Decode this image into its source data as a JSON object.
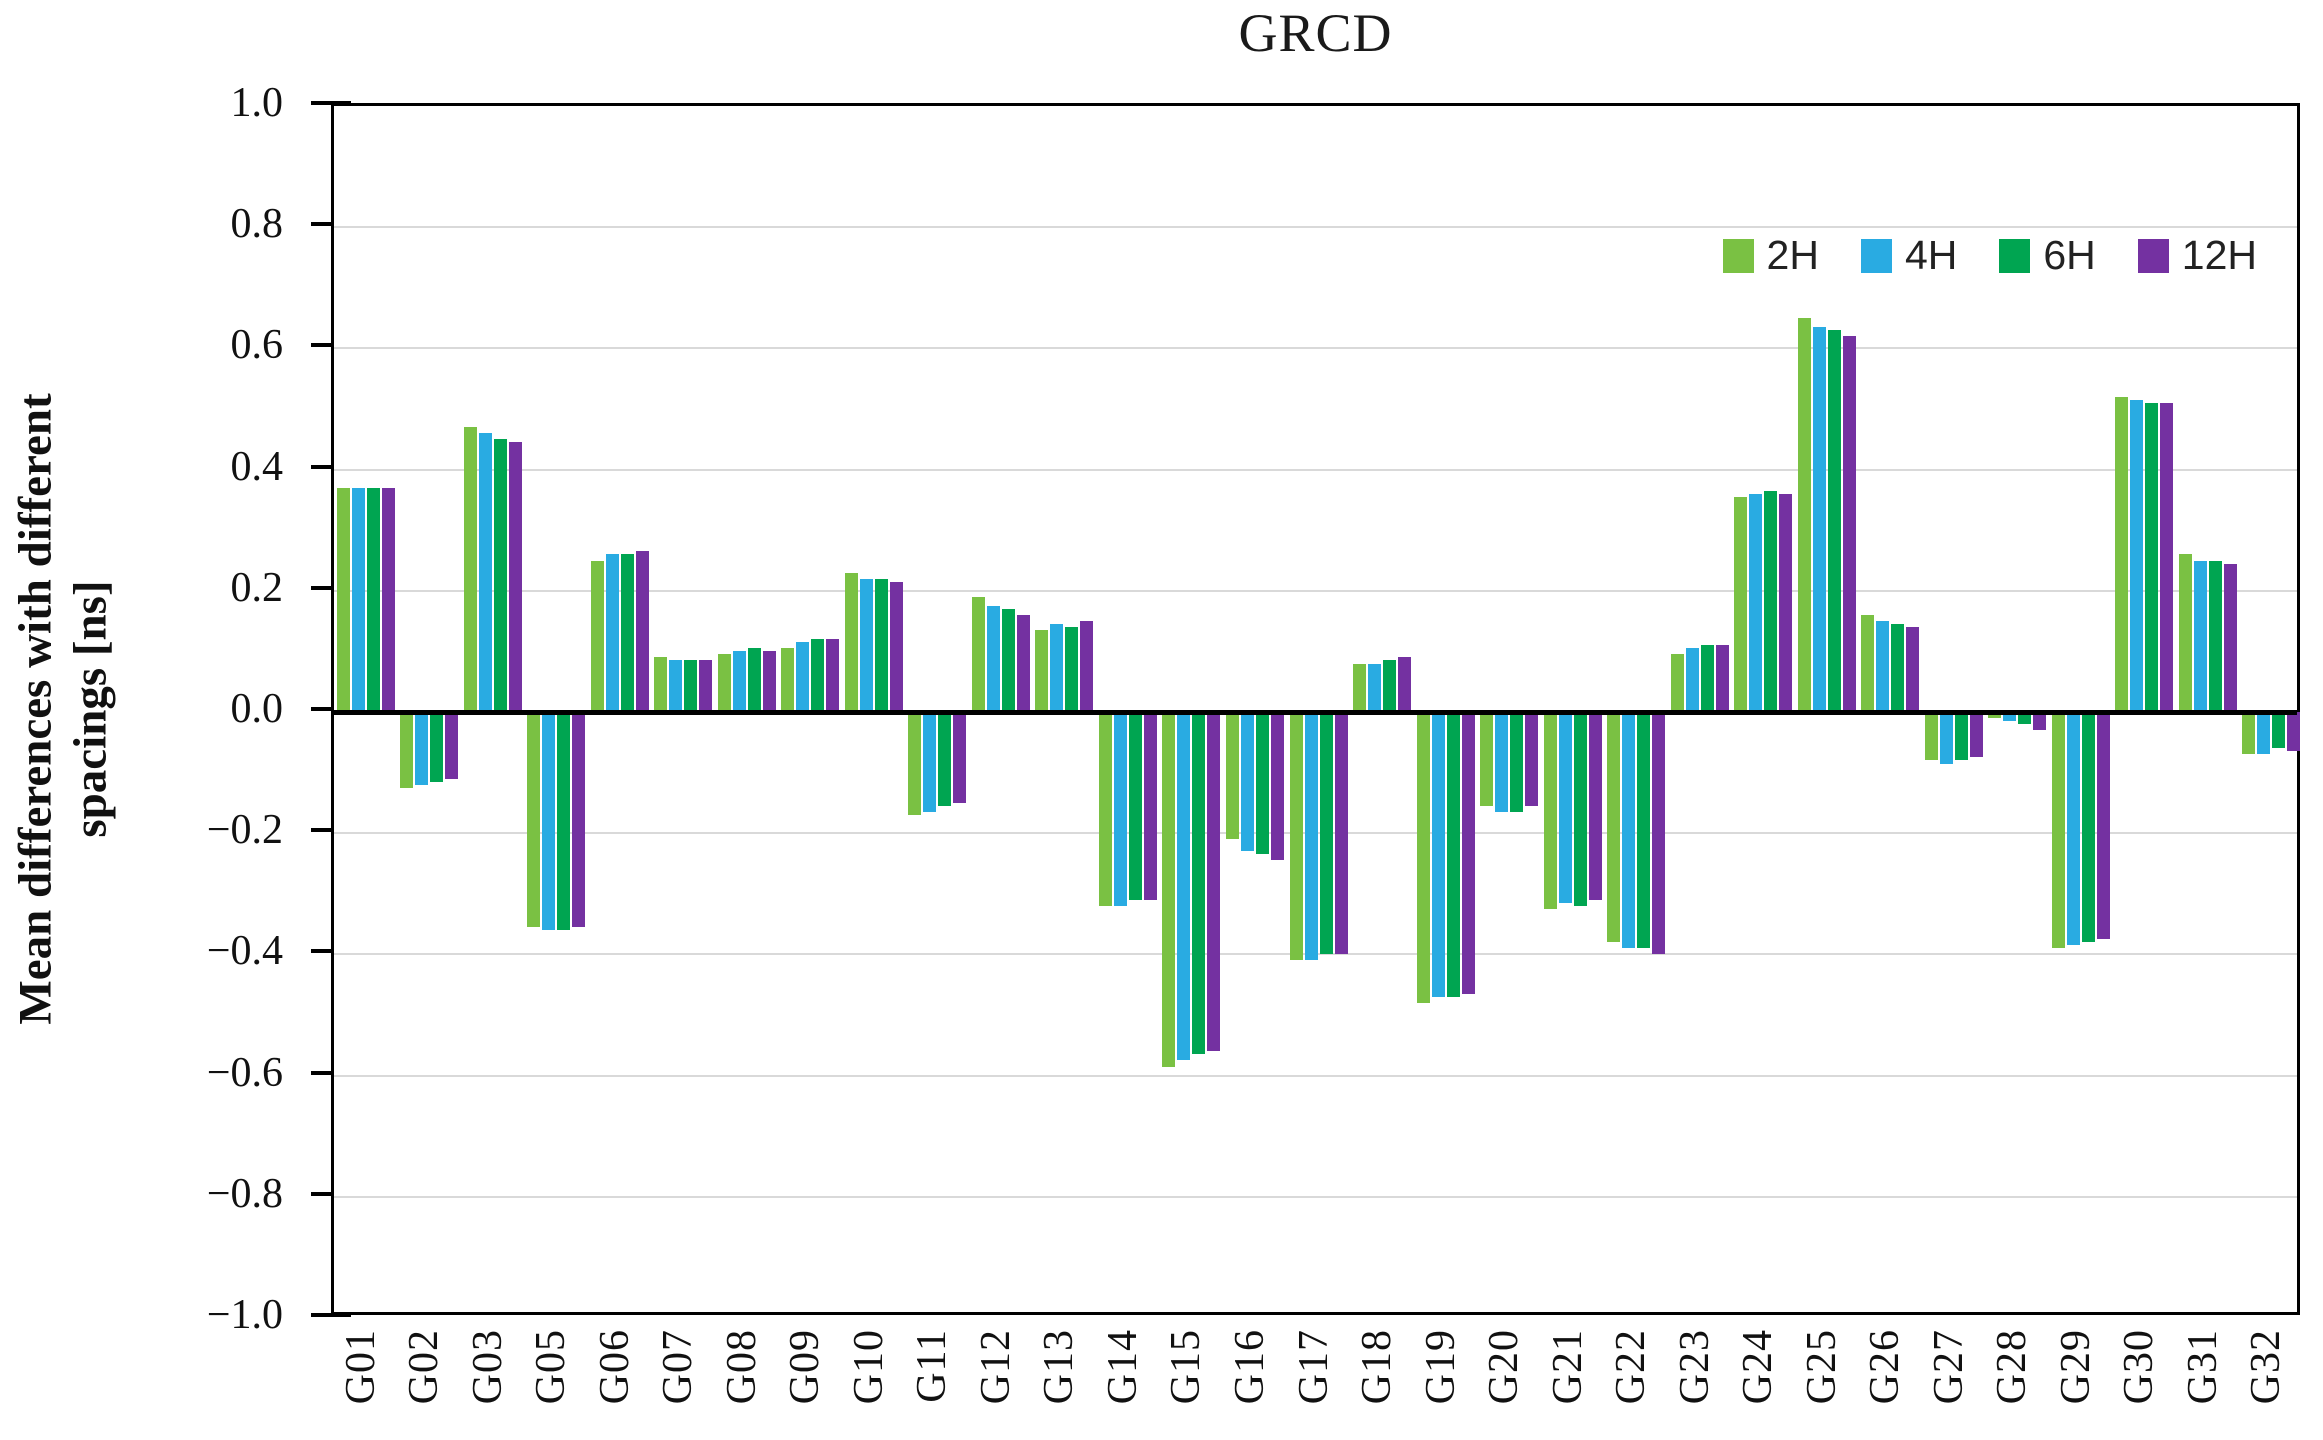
{
  "chart_data": {
    "type": "bar",
    "title": "GRCD",
    "ylabel": "Mean differences with different spacings [ns]",
    "ylabel_line1": "Mean differences with different",
    "ylabel_line2": "spacings [ns]",
    "xlabel": "",
    "ylim": [
      -1.0,
      1.0
    ],
    "ytick_step": 0.2,
    "ytick_labels": [
      "1.0",
      "0.8",
      "0.6",
      "0.4",
      "0.2",
      "0.0",
      "−0.2",
      "−0.4",
      "−0.6",
      "−0.8",
      "−1.0"
    ],
    "grid": true,
    "legend_position": "top-right",
    "categories": [
      "G01",
      "G02",
      "G03",
      "G05",
      "G06",
      "G07",
      "G08",
      "G09",
      "G10",
      "G11",
      "G12",
      "G13",
      "G14",
      "G15",
      "G16",
      "G17",
      "G18",
      "G19",
      "G20",
      "G21",
      "G22",
      "G23",
      "G24",
      "G25",
      "G26",
      "G27",
      "G28",
      "G29",
      "G30",
      "G31",
      "G32"
    ],
    "series": [
      {
        "name": "2H",
        "color": "#7AC143",
        "values": [
          0.37,
          -0.125,
          0.47,
          -0.355,
          0.25,
          0.09,
          0.095,
          0.105,
          0.23,
          -0.17,
          0.19,
          0.135,
          -0.32,
          -0.585,
          -0.21,
          -0.41,
          0.08,
          -0.48,
          -0.155,
          -0.325,
          -0.38,
          0.095,
          0.355,
          0.65,
          0.16,
          -0.08,
          -0.01,
          -0.39,
          0.52,
          0.26,
          -0.07
        ]
      },
      {
        "name": "4H",
        "color": "#29ABE2",
        "values": [
          0.37,
          -0.12,
          0.46,
          -0.36,
          0.26,
          0.085,
          0.1,
          0.115,
          0.22,
          -0.165,
          0.175,
          0.145,
          -0.32,
          -0.575,
          -0.23,
          -0.41,
          0.08,
          -0.47,
          -0.165,
          -0.315,
          -0.39,
          0.105,
          0.36,
          0.635,
          0.15,
          -0.085,
          -0.015,
          -0.385,
          0.515,
          0.25,
          -0.07
        ]
      },
      {
        "name": "6H",
        "color": "#00A551",
        "values": [
          0.37,
          -0.115,
          0.45,
          -0.36,
          0.26,
          0.085,
          0.105,
          0.12,
          0.22,
          -0.155,
          0.17,
          0.14,
          -0.31,
          -0.565,
          -0.235,
          -0.4,
          0.085,
          -0.47,
          -0.165,
          -0.32,
          -0.39,
          0.11,
          0.365,
          0.63,
          0.145,
          -0.08,
          -0.02,
          -0.38,
          0.51,
          0.25,
          -0.06
        ]
      },
      {
        "name": "12H",
        "color": "#7431A1",
        "values": [
          0.37,
          -0.11,
          0.445,
          -0.355,
          0.265,
          0.085,
          0.1,
          0.12,
          0.215,
          -0.15,
          0.16,
          0.15,
          -0.31,
          -0.56,
          -0.245,
          -0.4,
          0.09,
          -0.465,
          -0.155,
          -0.31,
          -0.4,
          0.11,
          0.36,
          0.62,
          0.14,
          -0.075,
          -0.03,
          -0.375,
          0.51,
          0.245,
          -0.065
        ]
      }
    ]
  }
}
